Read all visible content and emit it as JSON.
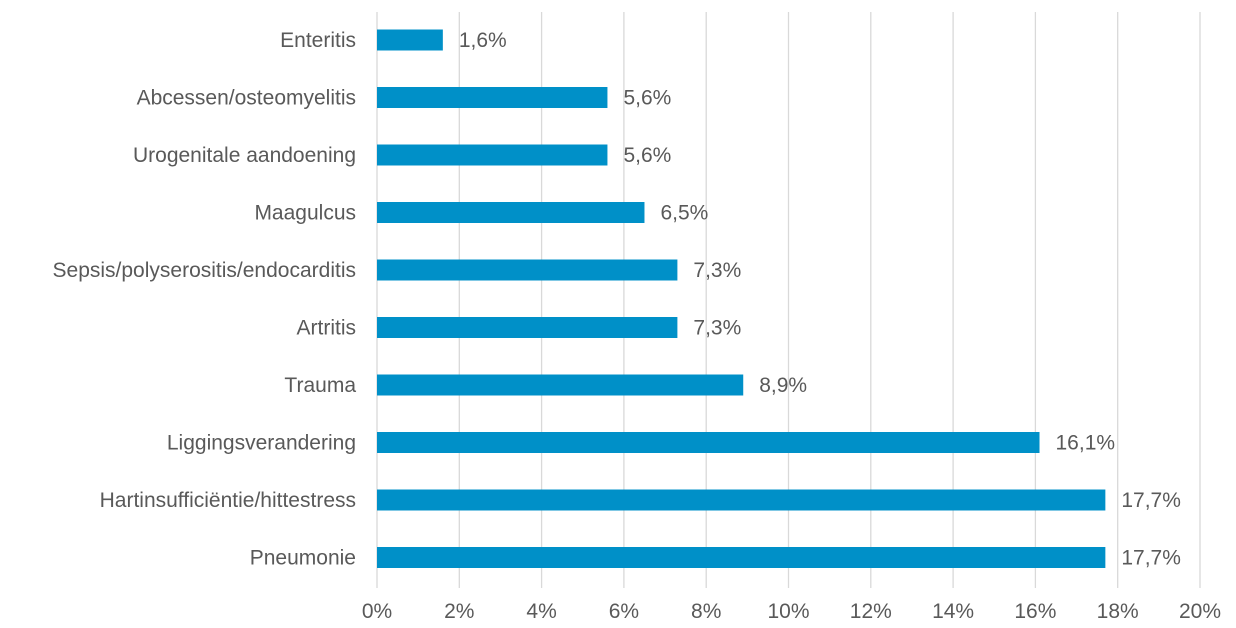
{
  "chart_data": {
    "type": "bar",
    "orientation": "horizontal",
    "categories": [
      "Enteritis",
      "Abcessen/osteomyelitis",
      "Urogenitale aandoening",
      "Maagulcus",
      "Sepsis/polyserositis/endocarditis",
      "Artritis",
      "Trauma",
      "Liggingsverandering",
      "Hartinsufficiëntie/hittestress",
      "Pneumonie"
    ],
    "values": [
      1.6,
      5.6,
      5.6,
      6.5,
      7.3,
      7.3,
      8.9,
      16.1,
      17.7,
      17.7
    ],
    "data_labels": [
      "1,6%",
      "5,6%",
      "5,6%",
      "6,5%",
      "7,3%",
      "7,3%",
      "8,9%",
      "16,1%",
      "17,7%",
      "17,7%"
    ],
    "xlim": [
      0,
      20
    ],
    "x_ticks": [
      0,
      2,
      4,
      6,
      8,
      10,
      12,
      14,
      16,
      18,
      20
    ],
    "x_tick_labels": [
      "0%",
      "2%",
      "4%",
      "6%",
      "8%",
      "10%",
      "12%",
      "14%",
      "16%",
      "18%",
      "20%"
    ],
    "title": "",
    "xlabel": "",
    "ylabel": "",
    "grid": "vertical",
    "legend": "none",
    "colors": {
      "bar": "#0090C8",
      "grid": "#D9D9D9",
      "text": "#595959"
    }
  }
}
